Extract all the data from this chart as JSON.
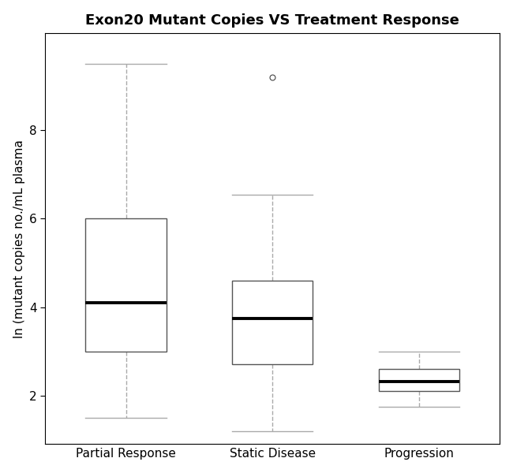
{
  "title": "Exon20 Mutant Copies VS Treatment Response",
  "ylabel": "ln (mutant copies no./mL plasma",
  "categories": [
    "Partial Response",
    "Static Disease",
    "Progression"
  ],
  "boxes": [
    {
      "label": "Partial Response",
      "whisker_low": 1.5,
      "q1": 3.0,
      "median": 4.1,
      "q3": 6.0,
      "whisker_high": 9.5,
      "outliers": []
    },
    {
      "label": "Static Disease",
      "whisker_low": 1.2,
      "q1": 2.7,
      "median": 3.75,
      "q3": 4.6,
      "whisker_high": 6.55,
      "outliers": [
        9.2
      ]
    },
    {
      "label": "Progression",
      "whisker_low": 1.75,
      "q1": 2.1,
      "median": 2.32,
      "q3": 2.6,
      "whisker_high": 3.0,
      "outliers": []
    }
  ],
  "ylim": [
    0.9,
    10.2
  ],
  "yticks": [
    2,
    4,
    6,
    8
  ],
  "box_width": 0.55,
  "box_color": "white",
  "median_linewidth": 2.8,
  "whisker_linestyle": "--",
  "whisker_color": "#aaaaaa",
  "cap_color": "#aaaaaa",
  "box_edge_color": "#555555",
  "outlier_marker": "o",
  "outlier_markersize": 5,
  "outlier_markerfacecolor": "white",
  "outlier_color": "#444444",
  "background_color": "white",
  "title_fontsize": 13,
  "label_fontsize": 11,
  "tick_fontsize": 11,
  "figsize": [
    6.5,
    6.0
  ],
  "dpi": 100
}
